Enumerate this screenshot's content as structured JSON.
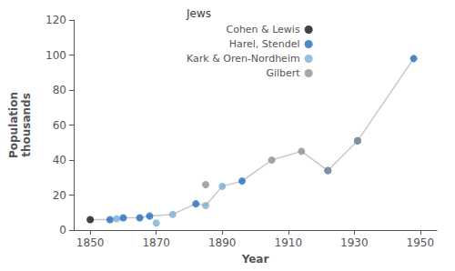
{
  "chart_data": {
    "type": "scatter",
    "xlabel": "Year",
    "ylabel": "Population\nthousands",
    "legend_title": "Jews",
    "xlim": [
      1845,
      1955
    ],
    "ylim": [
      0,
      120
    ],
    "xticks": [
      1850,
      1870,
      1890,
      1910,
      1930,
      1950
    ],
    "yticks": [
      0,
      20,
      40,
      60,
      80,
      100,
      120
    ],
    "grid": false,
    "legend": "upper left",
    "series": [
      {
        "type": "line",
        "color": "#c8c8c8",
        "x": [
          1850,
          1856,
          1858,
          1860,
          1865,
          1868,
          1875,
          1882,
          1885,
          1890,
          1896,
          1905,
          1914,
          1922,
          1931,
          1948
        ],
        "values": [
          6,
          6,
          6.5,
          7,
          7,
          8,
          9,
          15,
          14,
          25,
          28,
          40,
          45,
          34,
          51,
          98
        ]
      },
      {
        "name": "Cohen & Lewis",
        "type": "scatter",
        "color": "#111111",
        "x": [
          1850
        ],
        "values": [
          6
        ]
      },
      {
        "name": "Harel, Stendel",
        "type": "scatter",
        "color": "#1f6dbf",
        "x": [
          1856,
          1860,
          1865,
          1868,
          1882,
          1896,
          1922,
          1931,
          1948
        ],
        "values": [
          6,
          7,
          7,
          8,
          15,
          28,
          34,
          51,
          98
        ]
      },
      {
        "name": "Kark & Oren-Nordheim",
        "type": "scatter",
        "color": "#7bafd4",
        "x": [
          1858,
          1870,
          1875,
          1885,
          1890
        ],
        "values": [
          6.5,
          4,
          9,
          14,
          25
        ]
      },
      {
        "name": "Gilbert",
        "type": "scatter",
        "color": "#909090",
        "x": [
          1885,
          1905,
          1914,
          1922,
          1931
        ],
        "values": [
          26,
          40,
          45,
          34,
          51
        ]
      }
    ]
  }
}
